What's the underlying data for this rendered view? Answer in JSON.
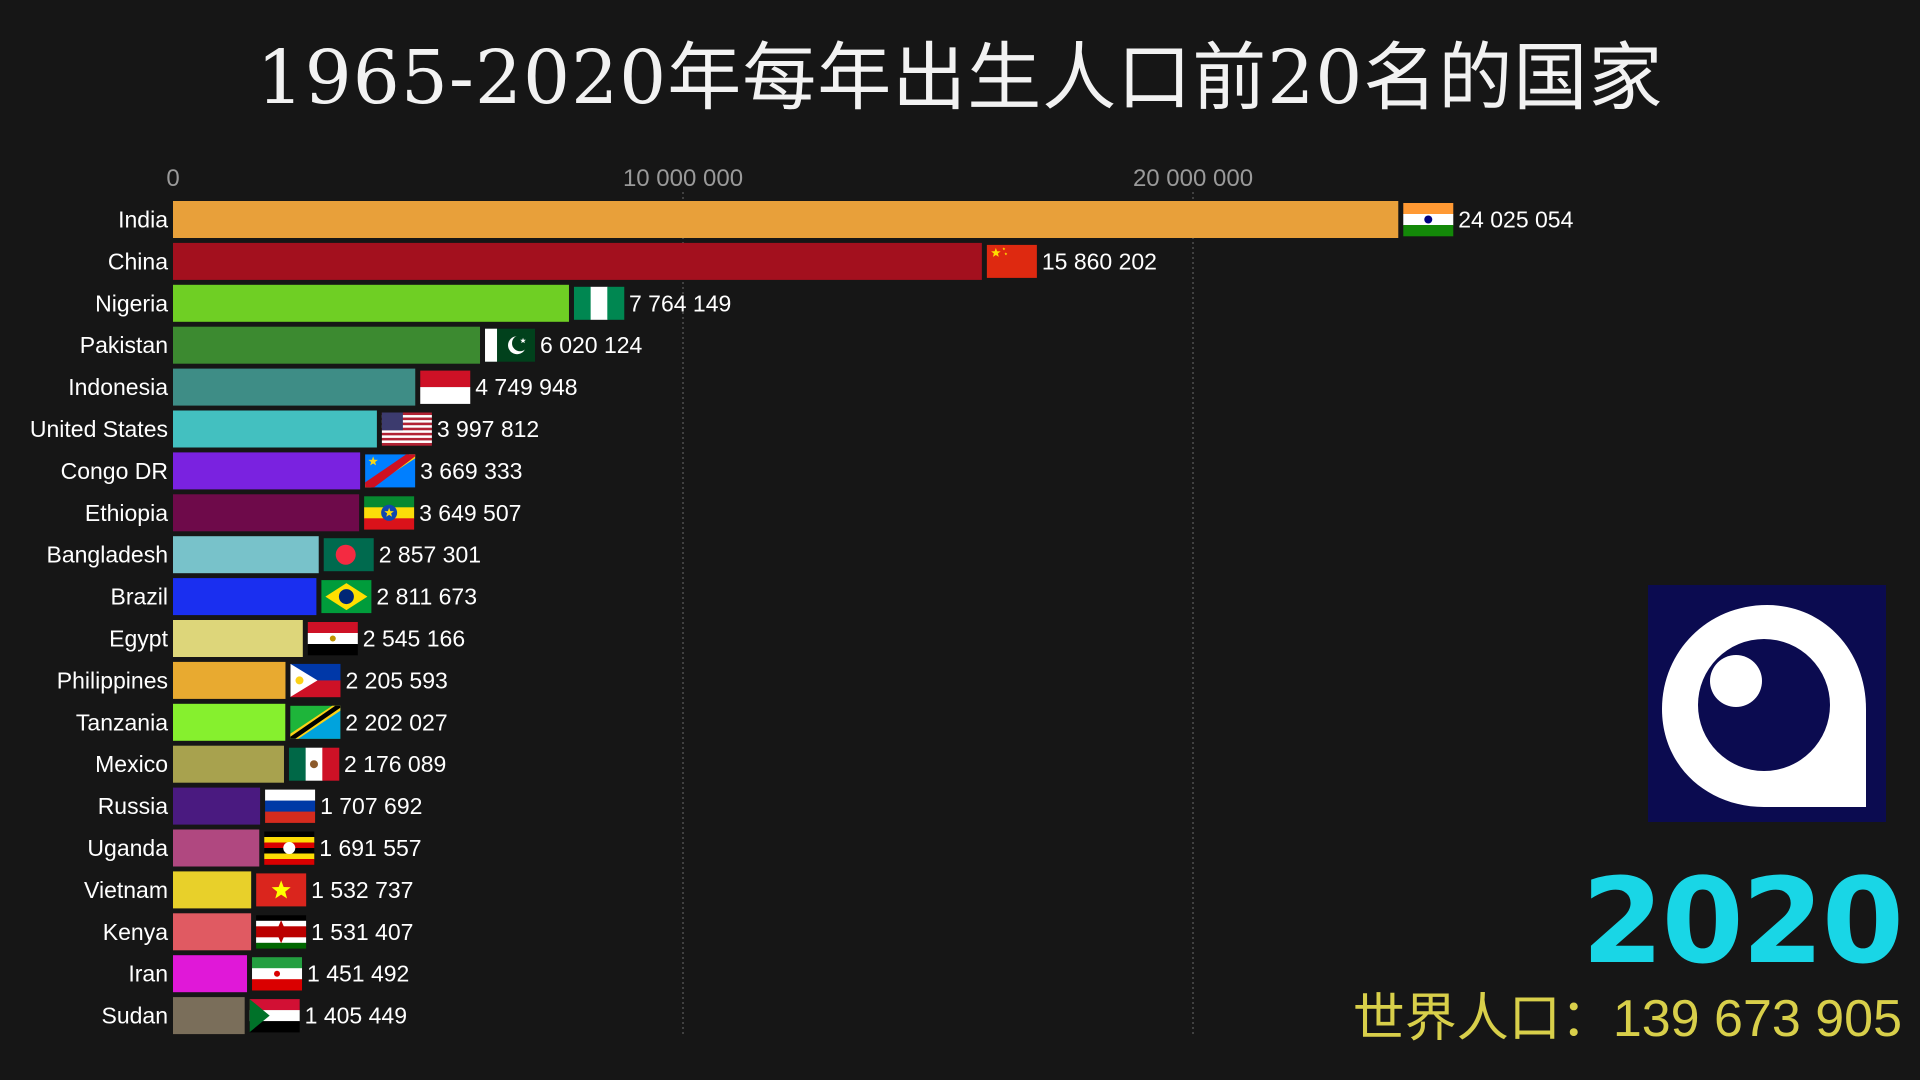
{
  "title": "1965-2020年每年出生人口前20名的国家",
  "year": "2020",
  "world_label": "世界人口：",
  "world_value": "139 673 905",
  "logo_icon": "blue-a-logo-icon",
  "chart_data": {
    "type": "bar",
    "orientation": "horizontal",
    "title": "1965-2020年每年出生人口前20名的国家",
    "xlim": [
      0,
      30000000
    ],
    "x_ticks": [
      0,
      10000000,
      20000000
    ],
    "x_tick_labels": [
      "0",
      "10 000 000",
      "20 000 000"
    ],
    "grid": true,
    "categories": [
      "India",
      "China",
      "Nigeria",
      "Pakistan",
      "Indonesia",
      "United States",
      "Congo DR",
      "Ethiopia",
      "Bangladesh",
      "Brazil",
      "Egypt",
      "Philippines",
      "Tanzania",
      "Mexico",
      "Russia",
      "Uganda",
      "Vietnam",
      "Kenya",
      "Iran",
      "Sudan"
    ],
    "values": [
      24025054,
      15860202,
      7764149,
      6020124,
      4749948,
      3997812,
      3669333,
      3649507,
      2857301,
      2811673,
      2545166,
      2205593,
      2202027,
      2176089,
      1707692,
      1691557,
      1532737,
      1531407,
      1451492,
      1405449
    ],
    "value_labels": [
      "24 025 054",
      "15 860 202",
      "7 764 149",
      "6 020 124",
      "4 749 948",
      "3 997 812",
      "3 669 333",
      "3 649 507",
      "2 857 301",
      "2 811 673",
      "2 545 166",
      "2 205 593",
      "2 202 027",
      "2 176 089",
      "1 707 692",
      "1 691 557",
      "1 532 737",
      "1 531 407",
      "1 451 492",
      "1 405 449"
    ],
    "colors": [
      "#e8a03a",
      "#a3101e",
      "#6fcf24",
      "#3c8a30",
      "#3e8d86",
      "#43c0c0",
      "#7a22e0",
      "#6e0a4a",
      "#78c2ca",
      "#1a2ff0",
      "#ddd67a",
      "#e8aa30",
      "#86f02e",
      "#a8a24e",
      "#4a1a80",
      "#b04880",
      "#e8d02a",
      "#e05a62",
      "#e018d8",
      "#7a6e5a"
    ],
    "flags": [
      "india-flag-icon",
      "china-flag-icon",
      "nigeria-flag-icon",
      "pakistan-flag-icon",
      "indonesia-flag-icon",
      "united-states-flag-icon",
      "congo-dr-flag-icon",
      "ethiopia-flag-icon",
      "bangladesh-flag-icon",
      "brazil-flag-icon",
      "egypt-flag-icon",
      "philippines-flag-icon",
      "tanzania-flag-icon",
      "mexico-flag-icon",
      "russia-flag-icon",
      "uganda-flag-icon",
      "vietnam-flag-icon",
      "kenya-flag-icon",
      "iran-flag-icon",
      "sudan-flag-icon"
    ]
  }
}
